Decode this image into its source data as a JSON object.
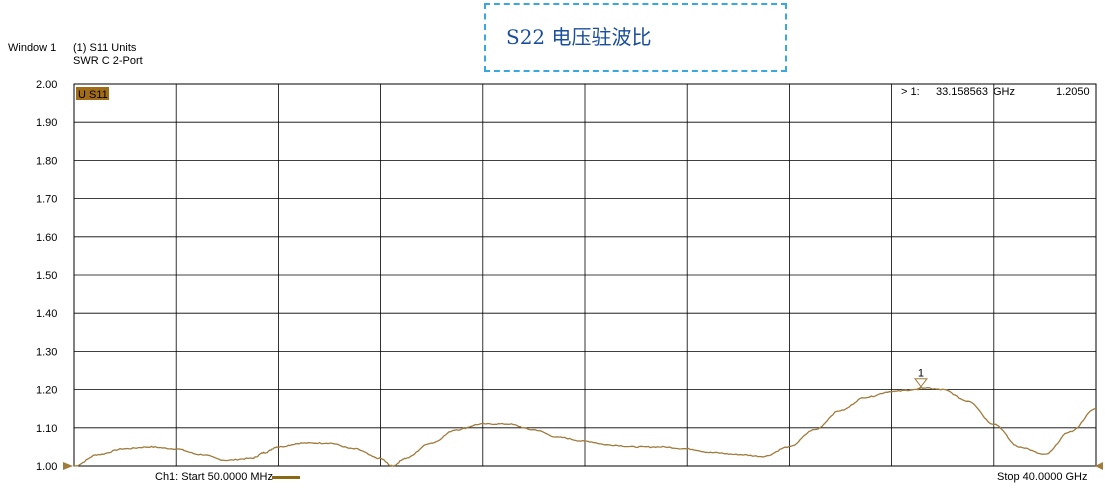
{
  "header": {
    "window_label": "Window 1",
    "measurement": "(1) S11 Units",
    "format": "SWR C  2-Port"
  },
  "overlay": {
    "title": "S22  电压驻波比"
  },
  "trace": {
    "label": "U S11",
    "color": "#a07b3c",
    "label_bg": "#a06c18"
  },
  "marker": {
    "number": "1",
    "readout_prefix": "> 1:",
    "readout_freq": "33.158563",
    "readout_unit": "GHz",
    "readout_value": "1.2050"
  },
  "footer": {
    "start": "Ch1: Start  50.0000 MHz",
    "stop": "Stop  40.0000 GHz"
  },
  "chart_data": {
    "type": "line",
    "xlim": [
      0.05,
      40.0
    ],
    "ylim": [
      1.0,
      2.0
    ],
    "yticks": [
      "2.00",
      "1.90",
      "1.80",
      "1.70",
      "1.60",
      "1.50",
      "1.40",
      "1.30",
      "1.20",
      "1.10",
      "1.00"
    ],
    "grid": true,
    "x_divisions": 10,
    "series": [
      {
        "name": "U S11",
        "x": [
          0.05,
          1,
          2,
          3,
          4,
          5,
          6,
          7,
          7.5,
          8,
          9,
          10,
          11,
          12,
          12.5,
          13,
          14,
          15,
          16,
          17,
          18,
          19,
          20,
          21,
          22,
          23,
          24,
          25,
          26,
          27,
          28,
          29,
          30,
          31,
          32,
          33,
          33.16,
          34,
          35,
          36,
          37,
          38,
          39,
          40
        ],
        "y": [
          1.0,
          1.03,
          1.045,
          1.05,
          1.045,
          1.03,
          1.015,
          1.02,
          1.035,
          1.05,
          1.06,
          1.06,
          1.045,
          1.02,
          1.0,
          1.02,
          1.06,
          1.095,
          1.11,
          1.11,
          1.095,
          1.075,
          1.065,
          1.055,
          1.05,
          1.05,
          1.045,
          1.035,
          1.03,
          1.025,
          1.05,
          1.095,
          1.145,
          1.18,
          1.195,
          1.2,
          1.205,
          1.2,
          1.17,
          1.11,
          1.05,
          1.03,
          1.09,
          1.15
        ]
      }
    ],
    "marker": {
      "x": 33.158563,
      "y": 1.205
    }
  }
}
